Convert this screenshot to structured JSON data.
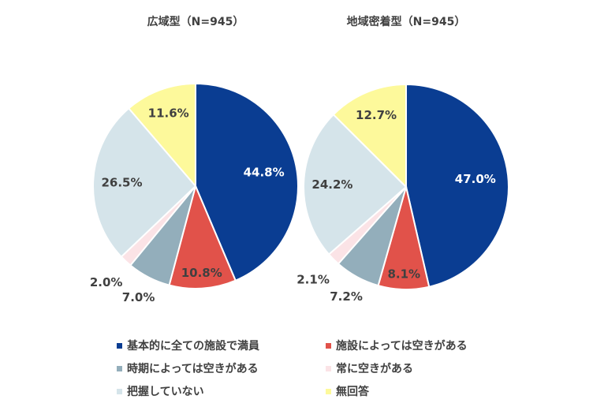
{
  "chart_data": [
    {
      "type": "pie",
      "title": "広域型（N=945）",
      "categories": [
        "基本的に全ての施設で満員",
        "施設によっては空きがある",
        "時期によっては空きがある",
        "常に空きがある",
        "把握していない",
        "無回答"
      ],
      "values": [
        44.8,
        10.8,
        7.0,
        2.0,
        26.5,
        11.6
      ],
      "labels": [
        "44.8%",
        "10.8%",
        "7.0%",
        "2.0%",
        "26.5%",
        "11.6%"
      ]
    },
    {
      "type": "pie",
      "title": "地域密着型（N=945）",
      "categories": [
        "基本的に全ての施設で満員",
        "施設によっては空きがある",
        "時期によっては空きがある",
        "常に空きがある",
        "把握していない",
        "無回答"
      ],
      "values": [
        47.0,
        8.1,
        7.2,
        2.1,
        24.2,
        12.7
      ],
      "labels": [
        "47.0%",
        "8.1%",
        "7.2%",
        "2.1%",
        "24.2%",
        "12.7%"
      ]
    }
  ],
  "legend": {
    "position": "bottom",
    "items": [
      "基本的に全ての施設で満員",
      "施設によっては空きがある",
      "時期によっては空きがある",
      "常に空きがある",
      "把握していない",
      "無回答"
    ]
  },
  "colors": [
    "#0a3d92",
    "#e1524a",
    "#93aebb",
    "#fbe3e6",
    "#d5e4ea",
    "#fdf99b"
  ]
}
